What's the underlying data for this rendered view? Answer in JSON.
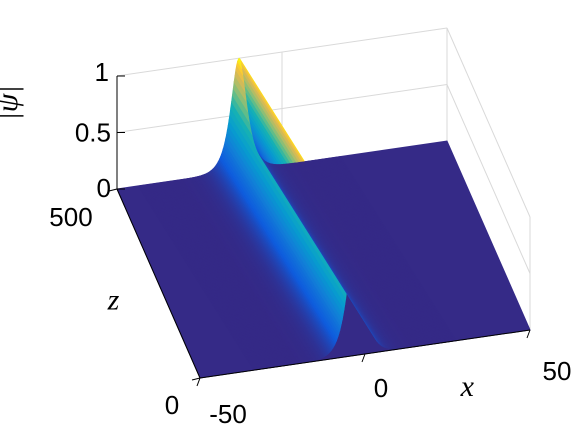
{
  "chart_data": {
    "type": "surface",
    "title": "",
    "xlabel": "x",
    "ylabel": "z",
    "zlabel": "|ψ|",
    "xlim": [
      -50,
      50
    ],
    "ylim": [
      0,
      500
    ],
    "zlim": [
      0,
      1
    ],
    "x_ticks": [
      "-50",
      "0",
      "50"
    ],
    "y_ticks": [
      "0",
      "500"
    ],
    "z_ticks": [
      "0",
      "0.5",
      "1"
    ],
    "grid": true,
    "colormap": "parula",
    "series": [
      {
        "profile": "sech",
        "peak": 1,
        "center_x_at_z0": -3,
        "center_x_at_z500": -13,
        "width": 2.2
      }
    ],
    "colors": {
      "floor": "#352a87",
      "peak": "#f9fb0e",
      "grid": "#d9d9d9",
      "axis": "#000000"
    }
  }
}
